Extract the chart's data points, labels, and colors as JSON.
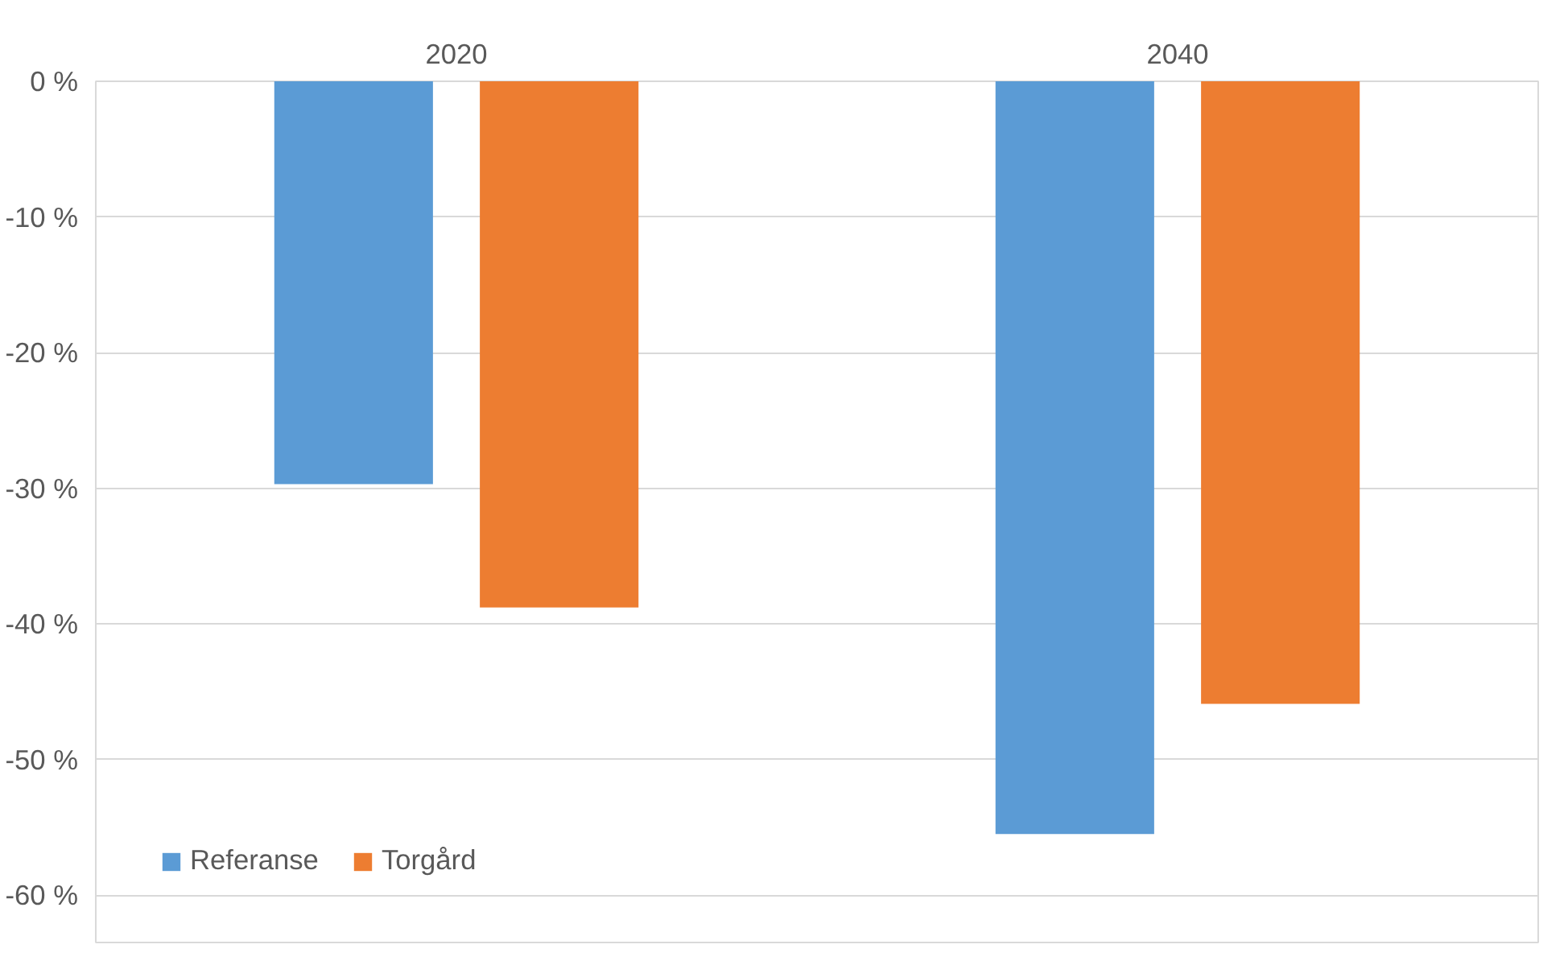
{
  "chart_data": {
    "type": "bar",
    "categories": [
      "2020",
      "2040"
    ],
    "series": [
      {
        "name": "Referanse",
        "color": "#5b9bd5",
        "values": [
          -29.7,
          -55.5
        ]
      },
      {
        "name": "Torgård",
        "color": "#ed7d31",
        "values": [
          -38.8,
          -45.9
        ]
      }
    ],
    "ylim": [
      -63.5,
      0
    ],
    "yticks": [
      {
        "value": 0,
        "label": "0 %"
      },
      {
        "value": -10,
        "label": "-10 %"
      },
      {
        "value": -20,
        "label": "-20 %"
      },
      {
        "value": -30,
        "label": "-30 %"
      },
      {
        "value": -40,
        "label": "-40 %"
      },
      {
        "value": -50,
        "label": "-50 %"
      },
      {
        "value": -60,
        "label": "-60 %"
      }
    ],
    "grid": "y",
    "legend": "bottom left"
  }
}
